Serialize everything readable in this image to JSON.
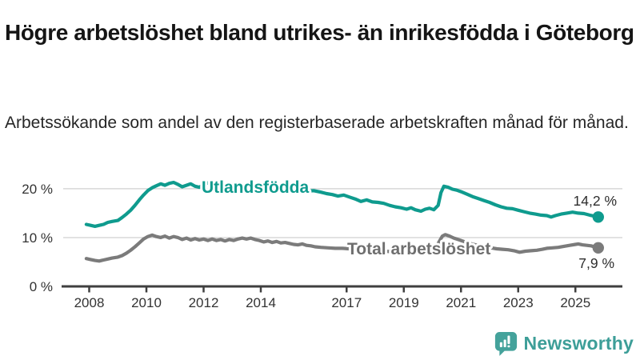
{
  "title": "Högre arbetslöshet bland utrikes- än inrikesfödda i Göteborg",
  "subtitle": "Arbetssökande som andel av den registerbaserade arbetskraften månad för månad.",
  "branding": {
    "name": "Newsworthy"
  },
  "colors": {
    "teal": "#0f9b8e",
    "gray": "#7b7b7b",
    "gray_label": "#6f6f6f",
    "grid": "#d8d8d8",
    "axis": "#3f3f3f",
    "tick_text": "#333333",
    "value_text": "#2d2d2d",
    "logo": "#44a29b"
  },
  "chart_data": {
    "type": "line",
    "title": "Högre arbetslöshet bland utrikes- än inrikesfödda i Göteborg",
    "subtitle": "Arbetssökande som andel av den registerbaserade arbetskraften månad för månad.",
    "x_unit": "decimal-year (monthly observations)",
    "xlim": [
      2007.9,
      2025.8
    ],
    "ylim": [
      0,
      23
    ],
    "grid": "horizontal-only",
    "legend_position": "inline-labels-on-lines",
    "y_ticks": [
      {
        "value": 0,
        "label": "0 %"
      },
      {
        "value": 10,
        "label": "10 %"
      },
      {
        "value": 20,
        "label": "20 %"
      }
    ],
    "x_ticks": [
      {
        "value": 2008,
        "label": "2008"
      },
      {
        "value": 2010,
        "label": "2010"
      },
      {
        "value": 2012,
        "label": "2012"
      },
      {
        "value": 2014,
        "label": "2014"
      },
      {
        "value": 2017,
        "label": "2017"
      },
      {
        "value": 2019,
        "label": "2019"
      },
      {
        "value": 2021,
        "label": "2021"
      },
      {
        "value": 2023,
        "label": "2023"
      },
      {
        "value": 2025,
        "label": "2025"
      }
    ],
    "series": [
      {
        "name": "Utlandsfödda",
        "color": "#0f9b8e",
        "end_value": 14.2,
        "end_label": "14,2 %",
        "points": [
          [
            2007.9,
            12.7
          ],
          [
            2008.05,
            12.5
          ],
          [
            2008.2,
            12.3
          ],
          [
            2008.35,
            12.5
          ],
          [
            2008.5,
            12.7
          ],
          [
            2008.65,
            13.1
          ],
          [
            2008.8,
            13.3
          ],
          [
            2009.0,
            13.5
          ],
          [
            2009.15,
            14.1
          ],
          [
            2009.3,
            14.8
          ],
          [
            2009.45,
            15.6
          ],
          [
            2009.6,
            16.6
          ],
          [
            2009.75,
            17.7
          ],
          [
            2009.9,
            18.7
          ],
          [
            2010.05,
            19.6
          ],
          [
            2010.2,
            20.2
          ],
          [
            2010.35,
            20.6
          ],
          [
            2010.5,
            21.0
          ],
          [
            2010.65,
            20.7
          ],
          [
            2010.8,
            21.1
          ],
          [
            2010.95,
            21.3
          ],
          [
            2011.1,
            20.9
          ],
          [
            2011.25,
            20.4
          ],
          [
            2011.4,
            20.7
          ],
          [
            2011.55,
            21.0
          ],
          [
            2011.7,
            20.5
          ],
          [
            2011.85,
            20.3
          ],
          [
            2012.0,
            20.8
          ],
          [
            2012.15,
            21.2
          ],
          [
            2012.3,
            20.9
          ],
          [
            2012.5,
            20.6
          ],
          [
            2012.7,
            21.0
          ],
          [
            2012.9,
            20.8
          ],
          [
            2013.1,
            20.7
          ],
          [
            2013.35,
            20.5
          ],
          [
            2013.6,
            20.6
          ],
          [
            2013.85,
            20.3
          ],
          [
            2014.1,
            20.2
          ],
          [
            2014.35,
            20.3
          ],
          [
            2014.6,
            20.0
          ],
          [
            2014.85,
            19.9
          ],
          [
            2015.1,
            19.8
          ],
          [
            2015.35,
            19.7
          ],
          [
            2015.6,
            19.5
          ],
          [
            2015.85,
            19.6
          ],
          [
            2016.1,
            19.3
          ],
          [
            2016.3,
            19.0
          ],
          [
            2016.5,
            18.8
          ],
          [
            2016.7,
            18.5
          ],
          [
            2016.9,
            18.7
          ],
          [
            2017.1,
            18.3
          ],
          [
            2017.3,
            17.9
          ],
          [
            2017.5,
            17.4
          ],
          [
            2017.7,
            17.7
          ],
          [
            2017.9,
            17.3
          ],
          [
            2018.1,
            17.2
          ],
          [
            2018.3,
            17.0
          ],
          [
            2018.5,
            16.6
          ],
          [
            2018.7,
            16.3
          ],
          [
            2018.9,
            16.1
          ],
          [
            2019.1,
            15.8
          ],
          [
            2019.25,
            16.1
          ],
          [
            2019.4,
            15.7
          ],
          [
            2019.6,
            15.4
          ],
          [
            2019.75,
            15.8
          ],
          [
            2019.9,
            16.0
          ],
          [
            2020.05,
            15.7
          ],
          [
            2020.2,
            16.6
          ],
          [
            2020.3,
            19.2
          ],
          [
            2020.4,
            20.5
          ],
          [
            2020.55,
            20.3
          ],
          [
            2020.7,
            19.9
          ],
          [
            2020.85,
            19.7
          ],
          [
            2021.0,
            19.4
          ],
          [
            2021.2,
            18.9
          ],
          [
            2021.4,
            18.4
          ],
          [
            2021.6,
            18.0
          ],
          [
            2021.8,
            17.6
          ],
          [
            2022.0,
            17.2
          ],
          [
            2022.2,
            16.7
          ],
          [
            2022.4,
            16.3
          ],
          [
            2022.6,
            16.0
          ],
          [
            2022.8,
            15.9
          ],
          [
            2023.0,
            15.6
          ],
          [
            2023.2,
            15.3
          ],
          [
            2023.4,
            15.0
          ],
          [
            2023.6,
            14.8
          ],
          [
            2023.8,
            14.6
          ],
          [
            2024.0,
            14.5
          ],
          [
            2024.15,
            14.2
          ],
          [
            2024.3,
            14.5
          ],
          [
            2024.5,
            14.8
          ],
          [
            2024.7,
            15.0
          ],
          [
            2024.9,
            15.2
          ],
          [
            2025.1,
            15.0
          ],
          [
            2025.3,
            14.9
          ],
          [
            2025.5,
            14.6
          ],
          [
            2025.65,
            14.4
          ],
          [
            2025.8,
            14.2
          ]
        ]
      },
      {
        "name": "Total arbetslöshet",
        "color": "#7b7b7b",
        "end_value": 7.9,
        "end_label": "7,9 %",
        "points": [
          [
            2007.9,
            5.7
          ],
          [
            2008.05,
            5.5
          ],
          [
            2008.2,
            5.3
          ],
          [
            2008.35,
            5.2
          ],
          [
            2008.5,
            5.4
          ],
          [
            2008.65,
            5.6
          ],
          [
            2008.8,
            5.8
          ],
          [
            2009.0,
            6.0
          ],
          [
            2009.15,
            6.3
          ],
          [
            2009.3,
            6.8
          ],
          [
            2009.45,
            7.4
          ],
          [
            2009.6,
            8.1
          ],
          [
            2009.75,
            8.9
          ],
          [
            2009.9,
            9.7
          ],
          [
            2010.05,
            10.2
          ],
          [
            2010.2,
            10.5
          ],
          [
            2010.35,
            10.2
          ],
          [
            2010.5,
            10.0
          ],
          [
            2010.65,
            10.3
          ],
          [
            2010.8,
            9.9
          ],
          [
            2010.95,
            10.2
          ],
          [
            2011.1,
            10.0
          ],
          [
            2011.25,
            9.6
          ],
          [
            2011.4,
            9.9
          ],
          [
            2011.55,
            9.5
          ],
          [
            2011.7,
            9.8
          ],
          [
            2011.85,
            9.5
          ],
          [
            2012.0,
            9.7
          ],
          [
            2012.15,
            9.4
          ],
          [
            2012.3,
            9.7
          ],
          [
            2012.45,
            9.4
          ],
          [
            2012.6,
            9.6
          ],
          [
            2012.75,
            9.3
          ],
          [
            2012.9,
            9.6
          ],
          [
            2013.05,
            9.4
          ],
          [
            2013.2,
            9.7
          ],
          [
            2013.35,
            9.9
          ],
          [
            2013.5,
            9.7
          ],
          [
            2013.65,
            9.9
          ],
          [
            2013.8,
            9.6
          ],
          [
            2013.95,
            9.4
          ],
          [
            2014.1,
            9.1
          ],
          [
            2014.25,
            9.3
          ],
          [
            2014.4,
            9.0
          ],
          [
            2014.55,
            9.2
          ],
          [
            2014.7,
            8.9
          ],
          [
            2014.85,
            9.0
          ],
          [
            2015.0,
            8.8
          ],
          [
            2015.15,
            8.6
          ],
          [
            2015.3,
            8.5
          ],
          [
            2015.45,
            8.7
          ],
          [
            2015.6,
            8.4
          ],
          [
            2015.75,
            8.3
          ],
          [
            2015.9,
            8.1
          ],
          [
            2016.1,
            8.0
          ],
          [
            2016.35,
            7.9
          ],
          [
            2016.6,
            7.8
          ],
          [
            2016.85,
            7.8
          ],
          [
            2017.1,
            7.7
          ],
          [
            2017.35,
            7.6
          ],
          [
            2017.6,
            7.5
          ],
          [
            2017.85,
            7.4
          ],
          [
            2018.1,
            7.3
          ],
          [
            2018.35,
            7.2
          ],
          [
            2018.6,
            7.1
          ],
          [
            2018.85,
            7.1
          ],
          [
            2019.1,
            7.0
          ],
          [
            2019.35,
            7.0
          ],
          [
            2019.6,
            7.1
          ],
          [
            2019.85,
            7.2
          ],
          [
            2020.05,
            7.5
          ],
          [
            2020.2,
            8.8
          ],
          [
            2020.35,
            10.3
          ],
          [
            2020.45,
            10.6
          ],
          [
            2020.6,
            10.3
          ],
          [
            2020.75,
            9.9
          ],
          [
            2020.9,
            9.6
          ],
          [
            2021.05,
            9.3
          ],
          [
            2021.25,
            8.9
          ],
          [
            2021.45,
            8.6
          ],
          [
            2021.65,
            8.3
          ],
          [
            2021.85,
            8.1
          ],
          [
            2022.05,
            7.9
          ],
          [
            2022.25,
            7.7
          ],
          [
            2022.45,
            7.6
          ],
          [
            2022.65,
            7.5
          ],
          [
            2022.85,
            7.3
          ],
          [
            2023.05,
            7.0
          ],
          [
            2023.25,
            7.2
          ],
          [
            2023.45,
            7.3
          ],
          [
            2023.65,
            7.4
          ],
          [
            2023.85,
            7.6
          ],
          [
            2024.0,
            7.8
          ],
          [
            2024.2,
            7.9
          ],
          [
            2024.4,
            8.0
          ],
          [
            2024.6,
            8.2
          ],
          [
            2024.8,
            8.4
          ],
          [
            2025.0,
            8.6
          ],
          [
            2025.1,
            8.7
          ],
          [
            2025.25,
            8.5
          ],
          [
            2025.4,
            8.4
          ],
          [
            2025.55,
            8.3
          ],
          [
            2025.8,
            7.9
          ]
        ]
      }
    ]
  }
}
